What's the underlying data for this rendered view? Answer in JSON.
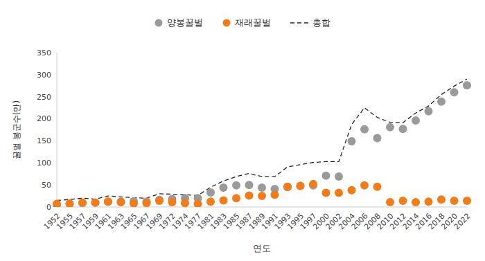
{
  "chart_data": {
    "type": "scatter",
    "x_label": "연도",
    "y_label": "꿀벌 봉군수(만)",
    "categories": [
      "1952",
      "1955",
      "1957",
      "1959",
      "1961",
      "1963",
      "1965",
      "1967",
      "1969",
      "1972",
      "1974",
      "1977",
      "1981",
      "1983",
      "1985",
      "1987",
      "1989",
      "1991",
      "1993",
      "1995",
      "1997",
      "2000",
      "2002",
      "2004",
      "2006",
      "2008",
      "2010",
      "2012",
      "2014",
      "2016",
      "2018",
      "2020",
      "2022"
    ],
    "series": [
      {
        "name": "양봉꿀벌",
        "type": "scatter",
        "marker": "circle",
        "color": "#9a9a9a",
        "values": [
          5,
          7,
          9,
          10,
          12,
          12,
          13,
          12,
          16,
          18,
          20,
          20,
          33,
          44,
          49,
          50,
          44,
          41,
          45,
          48,
          49,
          71,
          69,
          149,
          176,
          156,
          181,
          177,
          196,
          217,
          239,
          260,
          276
        ]
      },
      {
        "name": "재래꿀벌",
        "type": "scatter",
        "marker": "circle",
        "color": "#f07d1a",
        "values": [
          7,
          8,
          10,
          10,
          12,
          11,
          8,
          9,
          14,
          11,
          9,
          7,
          12,
          15,
          20,
          26,
          25,
          28,
          46,
          48,
          52,
          32,
          32,
          38,
          49,
          46,
          11,
          14,
          11,
          12,
          17,
          14,
          14
        ]
      },
      {
        "name": "총합",
        "type": "line",
        "line_style": "dashed",
        "color": "#222222",
        "values": [
          15,
          17,
          20,
          18,
          25,
          23,
          21,
          20,
          30,
          29,
          28,
          26,
          45,
          59,
          69,
          76,
          69,
          69,
          91,
          96,
          101,
          103,
          103,
          187,
          225,
          203,
          192,
          191,
          213,
          229,
          255,
          274,
          290
        ]
      }
    ],
    "ylim": [
      0,
      350
    ],
    "yticks": [
      0,
      50,
      100,
      150,
      200,
      250,
      300,
      350
    ],
    "grid": false,
    "legend": "top"
  }
}
